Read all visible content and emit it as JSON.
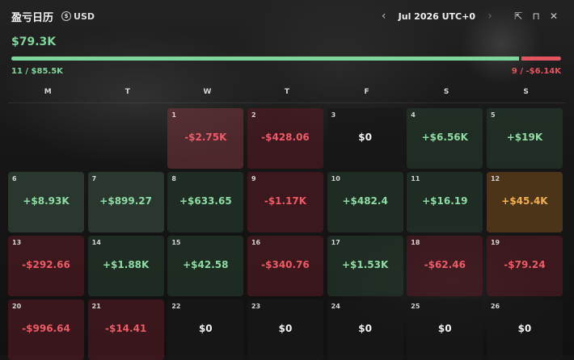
{
  "header": {
    "title": "盈亏日历",
    "currency": "USD",
    "currency_icon": "dollar-circle-icon",
    "month": "Jul 2026 UTC+0",
    "icons": [
      "share-icon",
      "paint-icon",
      "close-icon"
    ]
  },
  "summary": {
    "total": "$79.3K",
    "wins": "11 / $85.5K",
    "losses": "9 / -$6.14K",
    "win_fraction": 0.928
  },
  "weekdays": [
    "M",
    "T",
    "W",
    "T",
    "F",
    "S",
    "S"
  ],
  "colors": {
    "green": "#7fd69a",
    "red": "#e4545f",
    "gold": "#f3b04a"
  },
  "days": [
    {
      "day": "",
      "value": "",
      "style": "empty"
    },
    {
      "day": "",
      "value": "",
      "style": "empty"
    },
    {
      "day": "1",
      "value": "-$2.75K",
      "style": "neg2"
    },
    {
      "day": "2",
      "value": "-$428.06",
      "style": "neg"
    },
    {
      "day": "3",
      "value": "$0",
      "style": "zero"
    },
    {
      "day": "4",
      "value": "+$6.56K",
      "style": "pos"
    },
    {
      "day": "5",
      "value": "+$19K",
      "style": "pos"
    },
    {
      "day": "6",
      "value": "+$8.93K",
      "style": "pos2"
    },
    {
      "day": "7",
      "value": "+$899.27",
      "style": "pos2"
    },
    {
      "day": "8",
      "value": "+$633.65",
      "style": "pos"
    },
    {
      "day": "9",
      "value": "-$1.17K",
      "style": "neg"
    },
    {
      "day": "10",
      "value": "+$482.4",
      "style": "pos"
    },
    {
      "day": "11",
      "value": "+$16.19",
      "style": "pos"
    },
    {
      "day": "12",
      "value": "+$45.4K",
      "style": "gold"
    },
    {
      "day": "13",
      "value": "-$292.66",
      "style": "neg"
    },
    {
      "day": "14",
      "value": "+$1.88K",
      "style": "pos"
    },
    {
      "day": "15",
      "value": "+$42.58",
      "style": "pos"
    },
    {
      "day": "16",
      "value": "-$340.76",
      "style": "neg"
    },
    {
      "day": "17",
      "value": "+$1.53K",
      "style": "pos"
    },
    {
      "day": "18",
      "value": "-$62.46",
      "style": "neg"
    },
    {
      "day": "19",
      "value": "-$79.24",
      "style": "neg"
    },
    {
      "day": "20",
      "value": "-$996.64",
      "style": "neg"
    },
    {
      "day": "21",
      "value": "-$14.41",
      "style": "neg"
    },
    {
      "day": "22",
      "value": "$0",
      "style": "zero"
    },
    {
      "day": "23",
      "value": "$0",
      "style": "zero"
    },
    {
      "day": "24",
      "value": "$0",
      "style": "zero"
    },
    {
      "day": "25",
      "value": "$0",
      "style": "zero"
    },
    {
      "day": "26",
      "value": "$0",
      "style": "zero"
    }
  ]
}
